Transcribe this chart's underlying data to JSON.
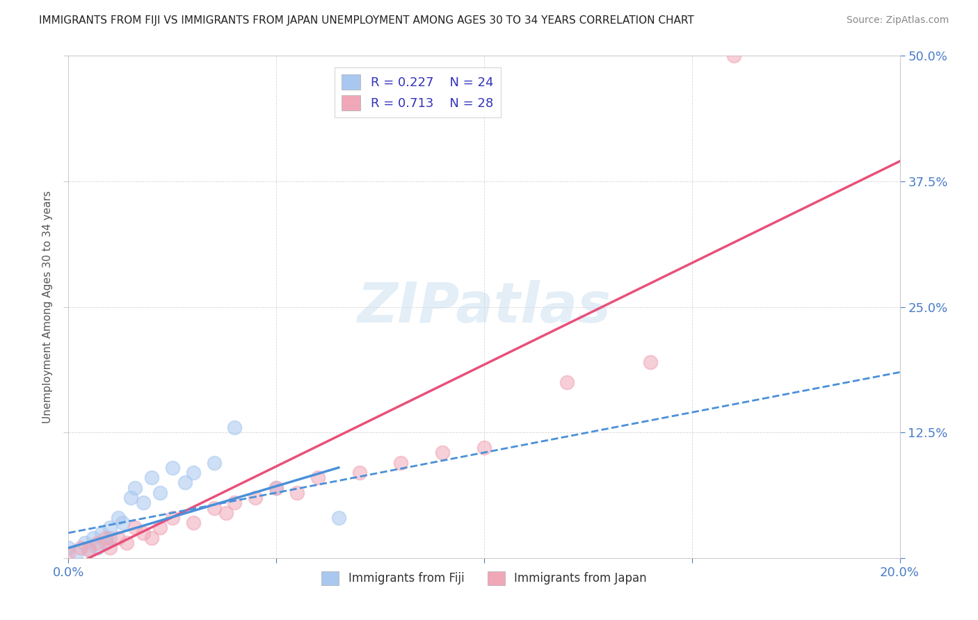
{
  "title": "IMMIGRANTS FROM FIJI VS IMMIGRANTS FROM JAPAN UNEMPLOYMENT AMONG AGES 30 TO 34 YEARS CORRELATION CHART",
  "source": "Source: ZipAtlas.com",
  "ylabel": "Unemployment Among Ages 30 to 34 years",
  "xlim": [
    0.0,
    0.2
  ],
  "ylim": [
    0.0,
    0.5
  ],
  "xticks": [
    0.0,
    0.05,
    0.1,
    0.15,
    0.2
  ],
  "yticks": [
    0.0,
    0.125,
    0.25,
    0.375,
    0.5
  ],
  "fiji_R": 0.227,
  "fiji_N": 24,
  "japan_R": 0.713,
  "japan_N": 28,
  "fiji_color": "#a8c8f0",
  "japan_color": "#f0a8b8",
  "fiji_line_color": "#4a90d9",
  "japan_line_color": "#e8507a",
  "watermark_text": "ZIPatlas",
  "fiji_x": [
    0.0,
    0.002,
    0.004,
    0.005,
    0.006,
    0.007,
    0.008,
    0.009,
    0.01,
    0.01,
    0.012,
    0.013,
    0.015,
    0.016,
    0.018,
    0.02,
    0.022,
    0.025,
    0.028,
    0.03,
    0.035,
    0.04,
    0.05,
    0.065
  ],
  "fiji_y": [
    0.01,
    0.005,
    0.015,
    0.008,
    0.02,
    0.01,
    0.025,
    0.015,
    0.03,
    0.02,
    0.04,
    0.035,
    0.06,
    0.07,
    0.055,
    0.08,
    0.065,
    0.09,
    0.075,
    0.085,
    0.095,
    0.13,
    0.07,
    0.04
  ],
  "japan_x": [
    0.0,
    0.003,
    0.005,
    0.007,
    0.009,
    0.01,
    0.012,
    0.014,
    0.016,
    0.018,
    0.02,
    0.022,
    0.025,
    0.03,
    0.035,
    0.038,
    0.04,
    0.045,
    0.05,
    0.055,
    0.06,
    0.07,
    0.08,
    0.09,
    0.1,
    0.12,
    0.14,
    0.16
  ],
  "japan_y": [
    0.005,
    0.01,
    0.008,
    0.015,
    0.02,
    0.01,
    0.02,
    0.015,
    0.03,
    0.025,
    0.02,
    0.03,
    0.04,
    0.035,
    0.05,
    0.045,
    0.055,
    0.06,
    0.07,
    0.065,
    0.08,
    0.085,
    0.095,
    0.105,
    0.11,
    0.175,
    0.195,
    0.5
  ]
}
